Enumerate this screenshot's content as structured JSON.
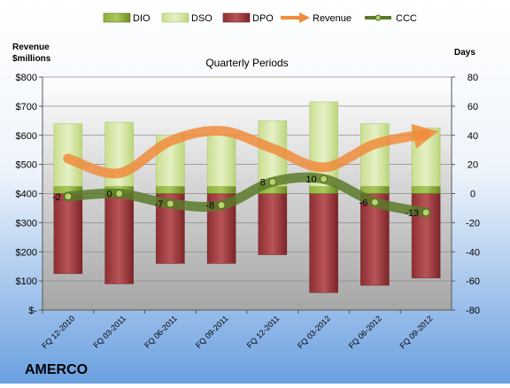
{
  "chart_data": {
    "type": "bar",
    "title": "Quarterly Periods",
    "company": "AMERCO",
    "left_axis_title": [
      "Revenue",
      "$millions"
    ],
    "right_axis_title": "Days",
    "legend_position": "top",
    "categories": [
      "FQ 12-2010",
      "FQ 03-2011",
      "FQ 06-2011",
      "FQ 09-2011",
      "FQ 12-2011",
      "FQ 03-2012",
      "FQ 06-2012",
      "FQ 09-2012"
    ],
    "left_axis": {
      "min": 0,
      "max": 800,
      "step": 100,
      "tick_labels": [
        "$-",
        "$100",
        "$200",
        "$300",
        "$400",
        "$500",
        "$600",
        "$700",
        "$800"
      ]
    },
    "right_axis": {
      "min": -80,
      "max": 80,
      "step": 20,
      "tick_labels": [
        "-80",
        "-60",
        "-40",
        "-20",
        "0",
        "20",
        "40",
        "60",
        "80"
      ]
    },
    "series": [
      {
        "name": "DIO",
        "kind": "bar",
        "axis": "right",
        "color": "#7a9a2a",
        "values": [
          5,
          5,
          5,
          5,
          5,
          5,
          5,
          5
        ]
      },
      {
        "name": "DSO",
        "kind": "bar",
        "axis": "right",
        "color": "#d7e8a8",
        "values": [
          43,
          44,
          35,
          35,
          45,
          58,
          43,
          40
        ]
      },
      {
        "name": "DPO",
        "kind": "bar",
        "axis": "right",
        "color": "#9e3b3e",
        "values": [
          -55,
          -62,
          -48,
          -48,
          -42,
          -68,
          -63,
          -58
        ]
      },
      {
        "name": "Revenue",
        "kind": "line",
        "axis": "left",
        "color": "#f08c3c",
        "values": [
          520,
          470,
          580,
          615,
          555,
          490,
          570,
          605
        ]
      },
      {
        "name": "CCC",
        "kind": "line",
        "axis": "right",
        "color": "#5a7a2a",
        "values": [
          -2,
          0,
          -7,
          -8,
          8,
          10,
          -6,
          -13
        ],
        "labels": [
          "-2",
          "0",
          "-7",
          "-8",
          "8",
          "10",
          "-6",
          "-13"
        ]
      }
    ]
  }
}
